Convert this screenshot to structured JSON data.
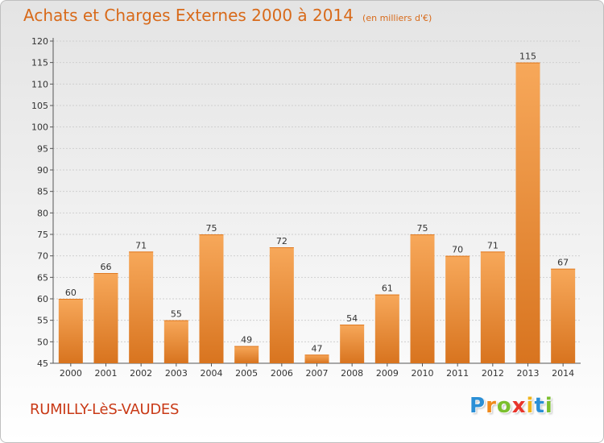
{
  "header": {
    "title": "Achats et Charges Externes 2000 à 2014",
    "subtitle": "(en milliers d'€)"
  },
  "footer": {
    "commune": "RUMILLY-LèS-VAUDES",
    "brand": "Proxiti",
    "brand_letters": [
      {
        "char": "P",
        "color": "#2a8fd6"
      },
      {
        "char": "r",
        "color": "#f08a1c"
      },
      {
        "char": "o",
        "color": "#7bbf2e"
      },
      {
        "char": "x",
        "color": "#e8342b"
      },
      {
        "char": "i",
        "color": "#f0b51c"
      },
      {
        "char": "t",
        "color": "#2a8fd6"
      },
      {
        "char": "i",
        "color": "#7bbf2e"
      }
    ]
  },
  "colors": {
    "bar_light": "#f7a85a",
    "bar_dark": "#d8741f",
    "grid": "#cfcfcf",
    "axis": "#555555",
    "title": "#d86a1a"
  },
  "chart_data": {
    "type": "bar",
    "title": "Achats et Charges Externes 2000 à 2014",
    "subtitle": "(en milliers d'€)",
    "categories": [
      "2000",
      "2001",
      "2002",
      "2003",
      "2004",
      "2005",
      "2006",
      "2007",
      "2008",
      "2009",
      "2010",
      "2011",
      "2012",
      "2013",
      "2014"
    ],
    "values": [
      60,
      66,
      71,
      55,
      75,
      49,
      72,
      47,
      54,
      61,
      75,
      70,
      71,
      115,
      67
    ],
    "ylim": [
      45,
      120
    ],
    "yticks": [
      45,
      50,
      55,
      60,
      65,
      70,
      75,
      80,
      85,
      90,
      95,
      100,
      105,
      110,
      115,
      120
    ],
    "grid": true,
    "data_labels": true
  }
}
